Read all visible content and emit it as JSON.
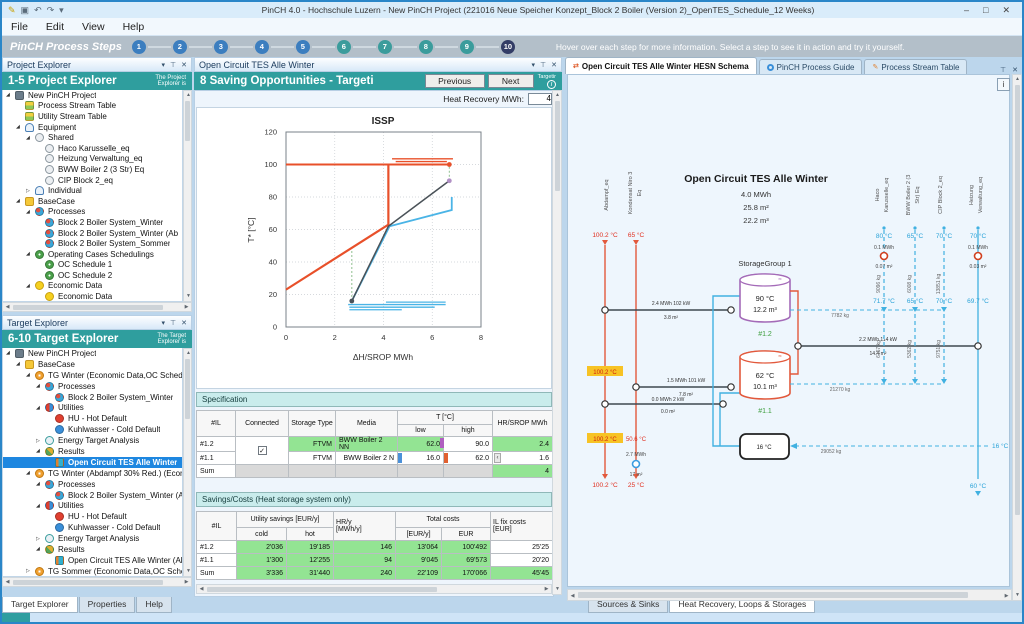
{
  "window": {
    "title": "PinCH 4.0 - Hochschule Luzern - New PinCH Project (221016 Neue Speicher Konzept_Block 2 Boiler (Version 2)_OpenTES_Schedule_12 Weeks)",
    "menu": [
      "File",
      "Edit",
      "View",
      "Help"
    ],
    "minimize": "–",
    "maximize": "□",
    "close": "✕"
  },
  "steps_bar": {
    "label": "PinCH Process Steps",
    "hint": "Hover over each step for more information. Select a step to see it in action and try it yourself.",
    "steps": [
      {
        "n": "1",
        "color": "#3c7ebf"
      },
      {
        "n": "2",
        "color": "#3c7ebf"
      },
      {
        "n": "3",
        "color": "#3c7ebf"
      },
      {
        "n": "4",
        "color": "#3c7ebf"
      },
      {
        "n": "5",
        "color": "#3c7ebf"
      },
      {
        "n": "6",
        "color": "#3b9c9c"
      },
      {
        "n": "7",
        "color": "#3b9c9c"
      },
      {
        "n": "8",
        "color": "#3b9c9c"
      },
      {
        "n": "9",
        "color": "#3b9c9c"
      },
      {
        "n": "10",
        "color": "#333d66"
      }
    ]
  },
  "project_explorer": {
    "pane_title": "Project Explorer",
    "banner": "1-5 Project Explorer",
    "banner_note": "The Project\nExplorer is",
    "tree": [
      {
        "label": "New PinCH Project",
        "level": 0,
        "icon": "project",
        "exp": "open"
      },
      {
        "label": "Process Stream Table",
        "level": 1,
        "icon": "table"
      },
      {
        "label": "Utility Stream Table",
        "level": 1,
        "icon": "table"
      },
      {
        "label": "Equipment",
        "level": 1,
        "icon": "equipment",
        "exp": "open"
      },
      {
        "label": "Shared",
        "level": 2,
        "icon": "shared",
        "exp": "open"
      },
      {
        "label": "Haco Karusselle_eq",
        "level": 3,
        "icon": "eq"
      },
      {
        "label": "Heizung Verwaltung_eq",
        "level": 3,
        "icon": "eq"
      },
      {
        "label": "BWW Boiler 2 (3 Str) Eq",
        "level": 3,
        "icon": "eq"
      },
      {
        "label": "CIP Block 2_eq",
        "level": 3,
        "icon": "eq"
      },
      {
        "label": "Individual",
        "level": 2,
        "icon": "equipment",
        "exp": "closed"
      },
      {
        "label": "BaseCase",
        "level": 1,
        "icon": "basecase",
        "exp": "open"
      },
      {
        "label": "Processes",
        "level": 2,
        "icon": "processes",
        "exp": "open"
      },
      {
        "label": "Block 2 Boiler System_Winter",
        "level": 3,
        "icon": "process"
      },
      {
        "label": "Block 2 Boiler System_Winter (Ab",
        "level": 3,
        "icon": "process"
      },
      {
        "label": "Block 2 Boiler System_Sommer",
        "level": 3,
        "icon": "process"
      },
      {
        "label": "Operating Cases Schedulings",
        "level": 2,
        "icon": "schedule",
        "exp": "open"
      },
      {
        "label": "OC Schedule 1",
        "level": 3,
        "icon": "schedule"
      },
      {
        "label": "OC Schedule 2",
        "level": 3,
        "icon": "schedule"
      },
      {
        "label": "Economic Data",
        "level": 2,
        "icon": "economic",
        "exp": "open"
      },
      {
        "label": "Economic Data",
        "level": 3,
        "icon": "economic"
      }
    ]
  },
  "target_explorer": {
    "pane_title": "Target Explorer",
    "banner": "6-10 Target Explorer",
    "banner_note": "The Target\nExplorer is",
    "tree": [
      {
        "label": "New PinCH Project",
        "level": 0,
        "icon": "project",
        "exp": "open"
      },
      {
        "label": "BaseCase",
        "level": 1,
        "icon": "basecase",
        "exp": "open"
      },
      {
        "label": "TG Winter (Economic Data,OC Schedule",
        "level": 2,
        "icon": "target",
        "exp": "open"
      },
      {
        "label": "Processes",
        "level": 3,
        "icon": "processes",
        "exp": "open"
      },
      {
        "label": "Block 2 Boiler System_Winter",
        "level": 4,
        "icon": "process"
      },
      {
        "label": "Utilities",
        "level": 3,
        "icon": "utilities",
        "exp": "open"
      },
      {
        "label": "HU - Hot Default",
        "level": 4,
        "icon": "hu"
      },
      {
        "label": "Kuhlwasser - Cold Default",
        "level": 4,
        "icon": "cw"
      },
      {
        "label": "Energy Target Analysis",
        "level": 3,
        "icon": "eta",
        "exp": "closed"
      },
      {
        "label": "Results",
        "level": 3,
        "icon": "results",
        "exp": "open"
      },
      {
        "label": "Open Circuit TES Alle Winter",
        "level": 4,
        "icon": "tes",
        "sel": true
      },
      {
        "label": "TG Winter (Abdampf 30% Red.) (Econom",
        "level": 2,
        "icon": "target",
        "exp": "open"
      },
      {
        "label": "Processes",
        "level": 3,
        "icon": "processes",
        "exp": "open"
      },
      {
        "label": "Block 2 Boiler System_Winter (Ab",
        "level": 4,
        "icon": "process"
      },
      {
        "label": "Utilities",
        "level": 3,
        "icon": "utilities",
        "exp": "open"
      },
      {
        "label": "HU - Hot Default",
        "level": 4,
        "icon": "hu"
      },
      {
        "label": "Kuhlwasser - Cold Default",
        "level": 4,
        "icon": "cw"
      },
      {
        "label": "Energy Target Analysis",
        "level": 3,
        "icon": "eta",
        "exp": "closed"
      },
      {
        "label": "Results",
        "level": 3,
        "icon": "results",
        "exp": "open"
      },
      {
        "label": "Open Circuit TES Alle Winter (Ab",
        "level": 4,
        "icon": "tes"
      },
      {
        "label": "TG Sommer (Economic Data,OC Schedul",
        "level": 2,
        "icon": "target",
        "exp": "closed"
      }
    ]
  },
  "left_tabs": [
    "Target Explorer",
    "Properties",
    "Help"
  ],
  "doc_panel": {
    "pane_title": "Open Circuit TES Alle Winter",
    "banner": "8 Saving Opportunities - Targeti",
    "prev_label": "Previous",
    "next_label": "Next",
    "corner_label": "Targetir",
    "info_glyph": "i",
    "hr_label": "Heat Recovery MWh:",
    "hr_value": "4",
    "spec": {
      "section_title": "Specification",
      "headers": {
        "il": "#IL",
        "connected": "Connected",
        "storage": "Storage Type",
        "media": "Media",
        "t": "T [°C]",
        "low": "low",
        "high": "high",
        "hr": "HR/SROP MWh"
      },
      "rows": [
        {
          "il": "#1.2",
          "storage": "FTVM",
          "media": "BWW Boiler 2 NN",
          "low": "62.0",
          "high": "90.0",
          "hr": "2.4"
        },
        {
          "il": "#1.1",
          "storage": "FTVM",
          "media": "BWW Boiler 2 N",
          "low": "16.0",
          "high": "62.0",
          "hr": "1.6"
        },
        {
          "il": "Sum",
          "hr": "4"
        }
      ],
      "checkbox_glyph": "✓"
    },
    "savings": {
      "section_title": "Savings/Costs (Heat storage system only)",
      "headers": {
        "il": "#IL",
        "utility": "Utility savings [EUR/y]",
        "cold": "cold",
        "hot": "hot",
        "hr1": "HR/y",
        "hr2": "[MWh/y]",
        "total": "Total costs",
        "eury": "[EUR/y]",
        "eur": "EUR",
        "fix1": "IL fix costs",
        "fix2": "[EUR]"
      },
      "rows": [
        {
          "il": "#1.2",
          "cold": "2'036",
          "hot": "19'185",
          "hr": "146",
          "total_y": "13'064",
          "total": "100'492",
          "fix": "25'25"
        },
        {
          "il": "#1.1",
          "cold": "1'300",
          "hot": "12'255",
          "hr": "94",
          "total_y": "9'045",
          "total": "69'573",
          "fix": "20'20"
        },
        {
          "il": "Sum",
          "cold": "3'336",
          "hot": "31'440",
          "hr": "240",
          "total_y": "22'109",
          "total": "170'066",
          "fix": "45'45"
        }
      ]
    },
    "tabs": [
      "Sources & Sinks",
      "Heat Recovery, Loops & Storages"
    ]
  },
  "chart_data": {
    "type": "line",
    "title": "ISSP",
    "xlabel": "ΔH/SROP MWh",
    "ylabel": "T* [°C]",
    "xlim": [
      0,
      8
    ],
    "ylim": [
      0,
      120
    ],
    "xticks": [
      0,
      2,
      4,
      6,
      8
    ],
    "yticks": [
      0,
      20,
      40,
      60,
      80,
      100,
      120
    ],
    "grid": true,
    "legend": "none",
    "series": [
      {
        "name": "source-top-line",
        "color": "#e8502a",
        "width": 2,
        "points": [
          [
            0,
            100
          ],
          [
            6.7,
            100
          ]
        ]
      },
      {
        "name": "source-composite",
        "color": "#e8502a",
        "width": 2.2,
        "points": [
          [
            0,
            23
          ],
          [
            4.2,
            63
          ],
          [
            4.2,
            100
          ]
        ]
      },
      {
        "name": "storage-upper-1",
        "color": "#e8502a",
        "width": 1.3,
        "points": [
          [
            4.35,
            103.5
          ],
          [
            6.85,
            103.5
          ]
        ]
      },
      {
        "name": "storage-upper-2",
        "color": "#e8502a",
        "width": 1.3,
        "points": [
          [
            4.5,
            101.8
          ],
          [
            6.6,
            101.8
          ]
        ]
      },
      {
        "name": "sink-composite",
        "color": "#4ab4e6",
        "width": 1.8,
        "points": [
          [
            2.7,
            16
          ],
          [
            4.25,
            62
          ],
          [
            6.8,
            72
          ],
          [
            6.8,
            80
          ]
        ]
      },
      {
        "name": "storage-profile",
        "color": "#4a5258",
        "width": 1.5,
        "points": [
          [
            2.7,
            16
          ],
          [
            4.2,
            62
          ],
          [
            6.7,
            90
          ]
        ]
      },
      {
        "name": "sink-seg-1",
        "color": "#4ab4e6",
        "width": 1.3,
        "points": [
          [
            4.1,
            15.3
          ],
          [
            6.55,
            15.3
          ]
        ]
      },
      {
        "name": "sink-seg-2",
        "color": "#4ab4e6",
        "width": 1.3,
        "points": [
          [
            2.55,
            13.8
          ],
          [
            6.55,
            13.8
          ]
        ]
      },
      {
        "name": "sink-seg-3",
        "color": "#4ab4e6",
        "width": 1.3,
        "points": [
          [
            2.6,
            12.2
          ],
          [
            6.1,
            12.2
          ]
        ]
      },
      {
        "name": "sink-seg-4",
        "color": "#4ab4e6",
        "width": 1.3,
        "points": [
          [
            2.6,
            10.6
          ],
          [
            4.75,
            10.6
          ]
        ]
      },
      {
        "name": "dt-marker-low",
        "color": "#8fbf8f",
        "width": 1,
        "dash": "2,2",
        "points": [
          [
            2.7,
            16
          ],
          [
            2.7,
            48
          ]
        ]
      },
      {
        "name": "dt-marker-high",
        "color": "#8fbf8f",
        "width": 1,
        "dash": "2,2",
        "points": [
          [
            6.7,
            90
          ],
          [
            6.7,
            100
          ]
        ]
      }
    ],
    "markers": [
      {
        "x": 6.7,
        "y": 100,
        "color": "#e8502a"
      },
      {
        "x": 6.7,
        "y": 90,
        "color": "#b190c5"
      },
      {
        "x": 2.7,
        "y": 16,
        "color": "#4a5258"
      }
    ]
  },
  "right_panel": {
    "tabs": [
      "Open Circuit TES Alle Winter HESN Schema",
      "PinCH Process Guide",
      "Process Stream Table"
    ],
    "info_glyph": "i",
    "schema": {
      "title": "Open Circuit TES Alle Winter",
      "total_energy": "4.0 MWh",
      "total_area": "25.8 m²",
      "total_volume": "22.2 m³",
      "storage_group": "StorageGroup 1",
      "tank1": {
        "temp": "90 °C",
        "vol": "12.2 m³",
        "id": "#1.2"
      },
      "tank2": {
        "temp": "62 °C",
        "vol": "10.1 m³",
        "id": "#1.1"
      },
      "hot1": {
        "name": "Abdampf_eq",
        "t_top": "100.2 °C",
        "t_mid1": "100.2 °C",
        "t_mid2": "100.2 °C",
        "t_bot": "100.2 °C"
      },
      "hot2": {
        "name1": "Kondensat Niro 3",
        "name2": "Eq",
        "t_top": "65 °C",
        "t_mid": "50.6 °C",
        "cu_mwh": "2.7 MWh",
        "cu_area": "17 m²",
        "t_bot": "25 °C"
      },
      "cold1": {
        "name1": "Haco",
        "name2": "Karusselle_eq",
        "t_top": "80 °C",
        "hu_mwh": "0.1 MWh",
        "hu_area": "0.07 m²",
        "kg_up": "9096 kg",
        "t_mid": "71.7 °C",
        "kg_low": "6157 kg"
      },
      "cold2": {
        "name1": "BWW Boiler 2 (3",
        "name2": "Str) Eq",
        "t_top": "65 °C",
        "kg_up": "6008 kg",
        "t_mid": "65 °C",
        "kg_low": "5362 kg"
      },
      "cold3": {
        "name1": "CIP Block 2_eq",
        "t_top": "70 °C",
        "kg_up": "13851 kg",
        "t_mid": "70 °C",
        "kg_low": "9751 kg"
      },
      "cold4": {
        "name1": "Heizung",
        "name2": "Verwaltung_eq",
        "t_top": "70 °C",
        "hu_mwh": "0.1 MWh",
        "hu_area": "0.03 m²",
        "t_mid": "69.7 °C",
        "t_bot": "60 °C"
      },
      "hx1": {
        "l1": "2.4 MWh 102 kW",
        "l2": "3.8 m²"
      },
      "hx2": {
        "l1": "1.5 MWh 101 kW",
        "l2": "7.8 m²"
      },
      "hx3": {
        "l1": "0.0 MWh 2 kW",
        "l2": "0.0 m²"
      },
      "hx4": {
        "l1": "2.2 MWh 114 kW",
        "l2": "14.4 m²"
      },
      "kg_top": "7782 kg",
      "kg_mid": "21270 kg",
      "kg_bot": "29052 kg",
      "cold_box_temp": "16 °C",
      "cold_in_temp": "16 °C"
    }
  },
  "colors": {
    "teal": "#2F9E9E",
    "selection": "#1E87E0",
    "hot": "#E2593C",
    "cold": "#41B1E1",
    "green_cell": "#93E493",
    "step_blue": "#3C7EBF",
    "step_teal": "#3B9C9C",
    "step_active": "#333D66"
  }
}
